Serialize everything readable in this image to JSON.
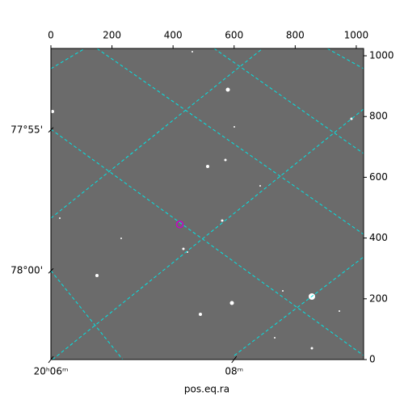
{
  "chart_data": {
    "type": "image",
    "xlabel": "pos.eq.ra",
    "xlim": [
      0,
      1024
    ],
    "ylim": [
      0,
      1024
    ],
    "xticks": [
      0,
      200,
      400,
      600,
      800,
      1000
    ],
    "yticks": [
      0,
      200,
      400,
      600,
      800,
      1000
    ],
    "ra_ticks": [
      {
        "value": 0,
        "label": "20ʰ06ᵐ"
      },
      {
        "value": 600,
        "label": "08ᵐ"
      }
    ],
    "dec_ticks": [
      {
        "value": 756,
        "label": "77°55'"
      },
      {
        "value": 292,
        "label": "78°00'"
      }
    ],
    "grid": true,
    "grid_color": "#00e5e5",
    "marker": {
      "x": 422,
      "y": 445,
      "color": "#cc00cc"
    }
  }
}
